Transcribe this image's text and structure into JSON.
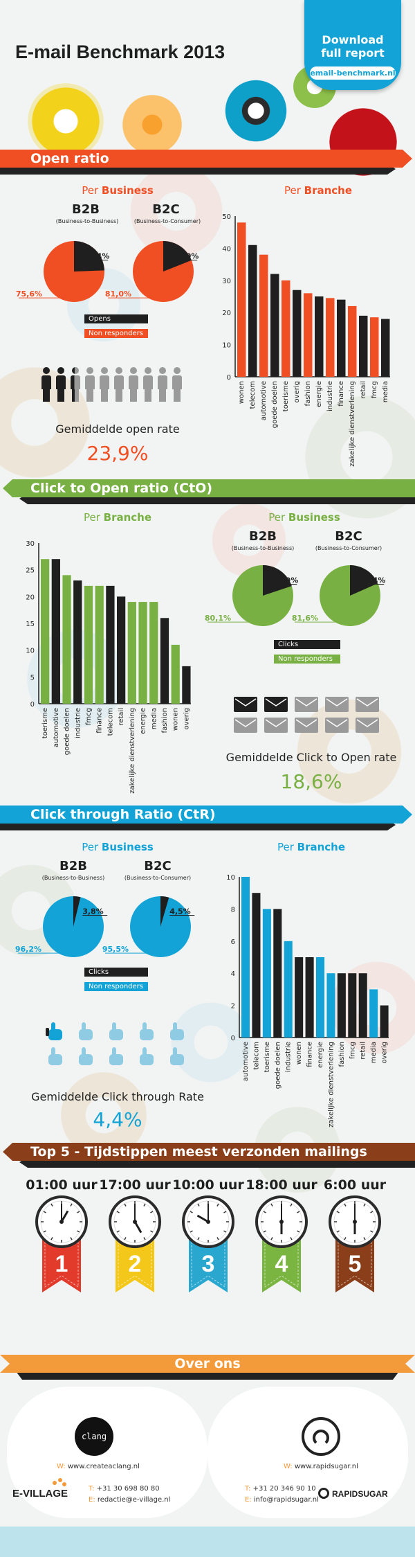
{
  "header": {
    "title": "E-mail Benchmark 2013",
    "download_line1": "Download",
    "download_line2": "full report",
    "download_url": "email-benchmark.nl"
  },
  "colors": {
    "orange": "#f04e23",
    "green": "#79b043",
    "blue": "#13a3d6",
    "brown": "#8b4513",
    "black": "#1f1f1f",
    "ribbon_red": "#e23b2b",
    "ribbon_yellow": "#f3c81a",
    "ribbon_blue": "#2aa7cf",
    "ribbon_green": "#7bb541",
    "ribbon_brown": "#8b3e1a"
  },
  "open_ratio": {
    "banner": "Open ratio",
    "per_business_prefix": "Per",
    "per_business_word": "Business",
    "per_branche_prefix": "Per",
    "per_branche_word": "Branche",
    "b2b_title": "B2B",
    "b2b_sub": "(Business-to-Business)",
    "b2c_title": "B2C",
    "b2c_sub": "(Business-to-Consumer)",
    "legend_opens": "Opens",
    "legend_non": "Non responders",
    "avg_label": "Gemiddelde open rate",
    "avg_value": "23,9%",
    "icon_fill_fraction": 0.239
  },
  "cto": {
    "banner": "Click to Open ratio (CtO)",
    "per_branche_prefix": "Per",
    "per_branche_word": "Branche",
    "per_business_prefix": "Per",
    "per_business_word": "Business",
    "b2b_title": "B2B",
    "b2b_sub": "(Business-to-Business)",
    "b2c_title": "B2C",
    "b2c_sub": "(Business-to-Consumer)",
    "legend_clicks": "Clicks",
    "legend_non": "Non responders",
    "avg_label": "Gemiddelde Click to Open rate",
    "avg_value": "18,6%",
    "icon_fill_fraction": 0.186
  },
  "ctr": {
    "banner": "Click through Ratio (CtR)",
    "per_business_prefix": "Per",
    "per_business_word": "Business",
    "per_branche_prefix": "Per",
    "per_branche_word": "Branche",
    "b2b_title": "B2B",
    "b2b_sub": "(Business-to-Business)",
    "b2c_title": "B2C",
    "b2c_sub": "(Business-to-Consumer)",
    "legend_clicks": "Clicks",
    "legend_non": "Non responders",
    "avg_label": "Gemiddelde Click through Rate",
    "avg_value": "4,4%",
    "icon_fill_fraction": 0.044
  },
  "top5": {
    "banner": "Top 5 - Tijdstippen meest verzonden mailings",
    "items": [
      {
        "time": "01:00 uur",
        "rank": "1",
        "hour": 1
      },
      {
        "time": "17:00 uur",
        "rank": "2",
        "hour": 17
      },
      {
        "time": "10:00 uur",
        "rank": "3",
        "hour": 10
      },
      {
        "time": "18:00 uur",
        "rank": "4",
        "hour": 18
      },
      {
        "time": "6:00 uur",
        "rank": "5",
        "hour": 6
      }
    ]
  },
  "over_ons": {
    "banner": "Over ons",
    "left_logo_text": "clang",
    "left_web_prefix": "W:",
    "left_web": "www.createaclang.nl",
    "left_brand": "E-VILLAGE",
    "left_phone_prefix": "T:",
    "left_phone": "+31 30 698 80 80",
    "left_email_prefix": "E:",
    "left_email": "redactie@e-village.nl",
    "right_web_prefix": "W:",
    "right_web": "www.rapidsugar.nl",
    "right_brand": "RAPIDSUGAR",
    "right_phone_prefix": "T:",
    "right_phone": "+31 20 346 90 10",
    "right_email_prefix": "E:",
    "right_email": "info@rapidsugar.nl"
  },
  "chart_data": [
    {
      "id": "open-b2b-pie",
      "type": "pie",
      "slices": [
        {
          "label": "Opens",
          "value": 24.4
        },
        {
          "label": "Non responders",
          "value": 75.6
        }
      ],
      "value_labels": [
        "24,4%",
        "75,6%"
      ]
    },
    {
      "id": "open-b2c-pie",
      "type": "pie",
      "slices": [
        {
          "label": "Opens",
          "value": 19.0
        },
        {
          "label": "Non responders",
          "value": 81.0
        }
      ],
      "value_labels": [
        "19,0%",
        "81,0%"
      ]
    },
    {
      "id": "open-branche-bar",
      "type": "bar",
      "categories": [
        "wonen",
        "telecom",
        "automotive",
        "goede doelen",
        "toerisme",
        "overig",
        "fashion",
        "energie",
        "industrie",
        "finance",
        "zakelijke dienstverlening",
        "retail",
        "fmcg",
        "media"
      ],
      "values": [
        48,
        41,
        38,
        32,
        30,
        27,
        26,
        25,
        24.5,
        24,
        22,
        19,
        18.5,
        18
      ],
      "ylim": [
        0,
        50
      ],
      "yticks": [
        "0",
        "10",
        "20",
        "30",
        "40",
        "50"
      ]
    },
    {
      "id": "cto-branche-bar",
      "type": "bar",
      "categories": [
        "toerisme",
        "automotive",
        "goede doelen",
        "industrie",
        "fmcg",
        "finance",
        "telecom",
        "retail",
        "zakelijke dienstverlening",
        "energie",
        "media",
        "fashion",
        "wonen",
        "overig"
      ],
      "values": [
        27,
        27,
        24,
        23,
        22,
        22,
        22,
        20,
        19,
        19,
        19,
        16,
        11,
        7
      ],
      "ylim": [
        0,
        30
      ],
      "yticks": [
        "0",
        "5",
        "10",
        "15",
        "20",
        "25",
        "30"
      ]
    },
    {
      "id": "cto-b2b-pie",
      "type": "pie",
      "slices": [
        {
          "label": "Clicks",
          "value": 19.9
        },
        {
          "label": "Non responders",
          "value": 80.1
        }
      ],
      "value_labels": [
        "19,9%",
        "80,1%"
      ]
    },
    {
      "id": "cto-b2c-pie",
      "type": "pie",
      "slices": [
        {
          "label": "Clicks",
          "value": 18.4
        },
        {
          "label": "Non responders",
          "value": 81.6
        }
      ],
      "value_labels": [
        "18,4%",
        "81,6%"
      ]
    },
    {
      "id": "ctr-b2b-pie",
      "type": "pie",
      "slices": [
        {
          "label": "Clicks",
          "value": 3.8
        },
        {
          "label": "Non responders",
          "value": 96.2
        }
      ],
      "value_labels": [
        "3,8%",
        "96,2%"
      ]
    },
    {
      "id": "ctr-b2c-pie",
      "type": "pie",
      "slices": [
        {
          "label": "Clicks",
          "value": 4.5
        },
        {
          "label": "Non responders",
          "value": 95.5
        }
      ],
      "value_labels": [
        "4,5%",
        "95,5%"
      ]
    },
    {
      "id": "ctr-branche-bar",
      "type": "bar",
      "categories": [
        "automotive",
        "telecom",
        "toerisme",
        "goede doelen",
        "industrie",
        "wonen",
        "finance",
        "energie",
        "zakelijke dienstverlening",
        "fashion",
        "fmcg",
        "retail",
        "media",
        "overig"
      ],
      "values": [
        10,
        9,
        8,
        8,
        6,
        5,
        5,
        5,
        4,
        4,
        4,
        4,
        3,
        2
      ],
      "ylim": [
        0,
        10
      ],
      "yticks": [
        "0",
        "2",
        "4",
        "6",
        "8",
        "10"
      ]
    }
  ]
}
